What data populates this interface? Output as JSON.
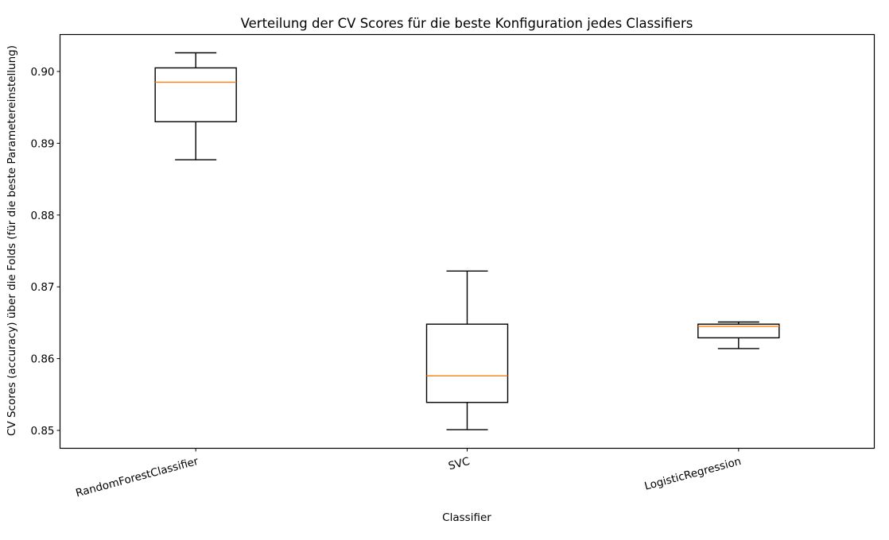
{
  "chart_data": {
    "type": "boxplot",
    "title": "Verteilung der CV Scores für die beste Konfiguration jedes Classifiers",
    "xlabel": "Classifier",
    "ylabel": "CV Scores (accuracy) über die Folds (für die beste Parametereinstellung)",
    "categories": [
      "RandomForestClassifier",
      "SVC",
      "LogisticRegression"
    ],
    "ylim": [
      0.8476,
      0.9055
    ],
    "yticks": [
      0.85,
      0.86,
      0.87,
      0.88,
      0.89,
      0.9
    ],
    "ytick_labels": [
      "0.85",
      "0.86",
      "0.87",
      "0.88",
      "0.89",
      "0.90"
    ],
    "xtick_rotation": -15,
    "grid": false,
    "legend": null,
    "series": [
      {
        "name": "RandomForestClassifier",
        "whisker_high": 0.9026,
        "q3": 0.9005,
        "median": 0.8985,
        "q1": 0.893,
        "whisker_low": 0.8877
      },
      {
        "name": "SVC",
        "whisker_high": 0.8722,
        "q3": 0.8648,
        "median": 0.8576,
        "q1": 0.8539,
        "whisker_low": 0.8501
      },
      {
        "name": "LogisticRegression",
        "whisker_high": 0.8651,
        "q3": 0.8648,
        "median": 0.8645,
        "q1": 0.8629,
        "whisker_low": 0.8614
      }
    ],
    "colors": {
      "box": "#000000",
      "median": "#ff7f0e",
      "axes": "#000000"
    }
  }
}
